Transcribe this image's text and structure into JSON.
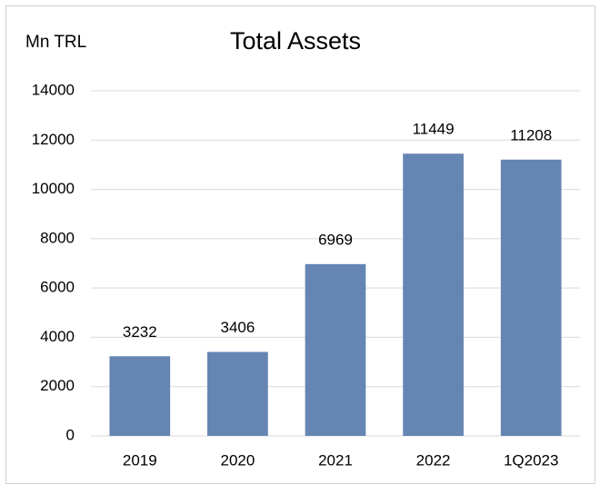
{
  "chart_data": {
    "type": "bar",
    "title": "Total Assets",
    "y_label": "Mn TRL",
    "categories": [
      "2019",
      "2020",
      "2021",
      "2022",
      "1Q2023"
    ],
    "values": [
      3232,
      3406,
      6969,
      11449,
      11208
    ],
    "color": "#6585b3",
    "ylim": [
      0,
      14000
    ],
    "yticks": [
      0,
      2000,
      4000,
      6000,
      8000,
      10000,
      12000,
      14000
    ],
    "grid": true
  }
}
